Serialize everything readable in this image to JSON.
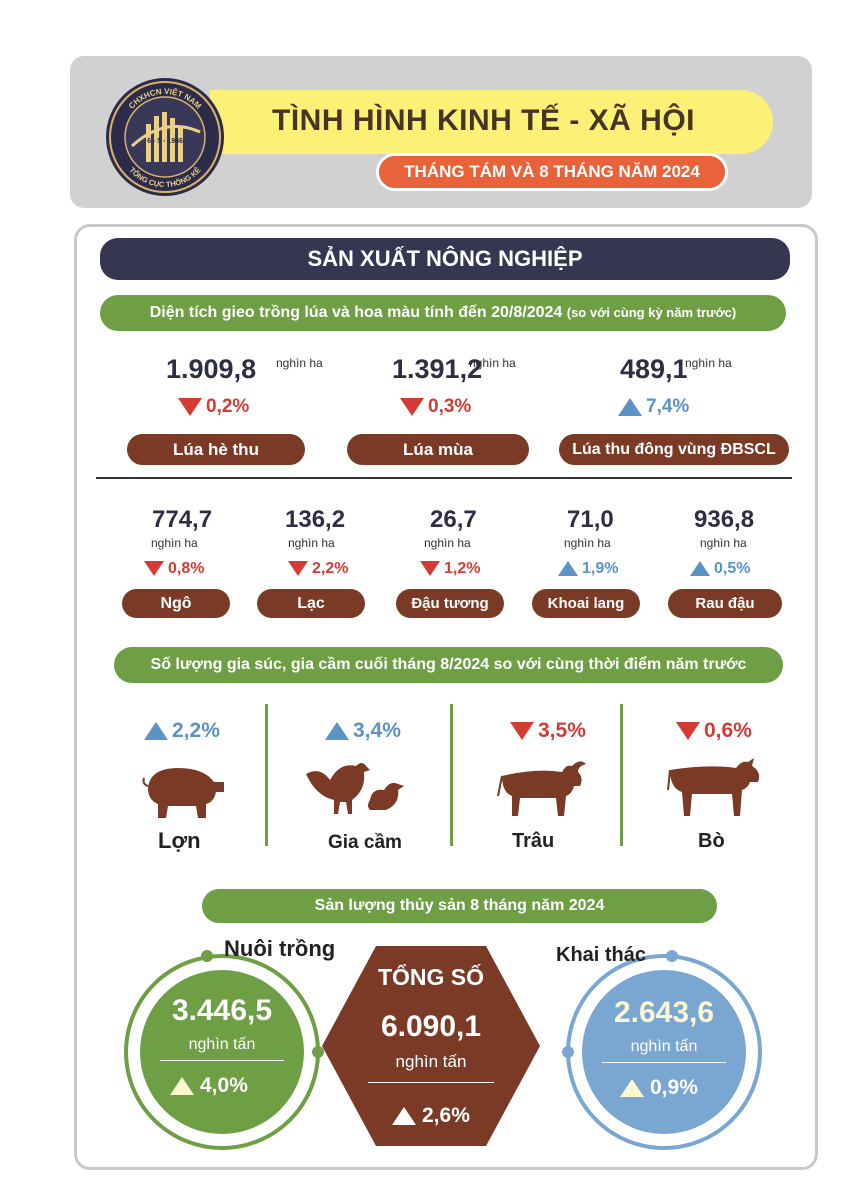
{
  "header": {
    "title": "TÌNH HÌNH KINH TẾ - XÃ HỘI",
    "subtitle": "THÁNG TÁM VÀ 8 THÁNG NĂM 2024",
    "logo": {
      "top_text": "CHXHCN VIỆT NAM",
      "date_text": "6 - 5 - 1946",
      "bottom_text": "TỔNG CỤC THỐNG KÊ"
    }
  },
  "section_title": "SẢN XUẤT NÔNG NGHIỆP",
  "sown_area": {
    "heading": "Diện tích gieo trồng lúa và hoa màu tính đến 20/8/2024",
    "heading_note": "(so với cùng kỳ năm trước)",
    "rice": [
      {
        "value": "1.909,8",
        "unit": "nghìn ha",
        "change": "0,2%",
        "direction": "down",
        "label": "Lúa hè thu"
      },
      {
        "value": "1.391,2",
        "unit": "nghìn ha",
        "change": "0,3%",
        "direction": "down",
        "label": "Lúa mùa"
      },
      {
        "value": "489,1",
        "unit": "nghìn ha",
        "change": "7,4%",
        "direction": "up",
        "label": "Lúa thu đông vùng ĐBSCL"
      }
    ],
    "crops": [
      {
        "value": "774,7",
        "unit": "nghìn ha",
        "change": "0,8%",
        "direction": "down",
        "label": "Ngô"
      },
      {
        "value": "136,2",
        "unit": "nghìn ha",
        "change": "2,2%",
        "direction": "down",
        "label": "Lạc"
      },
      {
        "value": "26,7",
        "unit": "nghìn ha",
        "change": "1,2%",
        "direction": "down",
        "label": "Đậu tương"
      },
      {
        "value": "71,0",
        "unit": "nghìn ha",
        "change": "1,9%",
        "direction": "up",
        "label": "Khoai lang"
      },
      {
        "value": "936,8",
        "unit": "nghìn ha",
        "change": "0,5%",
        "direction": "up",
        "label": "Rau đậu"
      }
    ]
  },
  "livestock": {
    "heading": "Số lượng gia súc, gia cầm cuối tháng 8/2024 so với cùng thời điểm năm trước",
    "items": [
      {
        "name": "Lợn",
        "change": "2,2%",
        "direction": "up",
        "icon": "pig-icon"
      },
      {
        "name": "Gia cầm",
        "change": "3,4%",
        "direction": "up",
        "icon": "poultry-icon"
      },
      {
        "name": "Trâu",
        "change": "3,5%",
        "direction": "down",
        "icon": "buffalo-icon"
      },
      {
        "name": "Bò",
        "change": "0,6%",
        "direction": "down",
        "icon": "cow-icon"
      }
    ]
  },
  "fishery": {
    "heading": "Sản lượng thủy sản 8 tháng năm 2024",
    "aquaculture": {
      "label": "Nuôi trồng",
      "value": "3.446,5",
      "unit": "nghìn tấn",
      "change": "4,0%"
    },
    "total": {
      "label": "TỔNG SỐ",
      "value": "6.090,1",
      "unit": "nghìn tấn",
      "change": "2,6%"
    },
    "capture": {
      "label": "Khai thác",
      "value": "2.643,6",
      "unit": "nghìn tấn",
      "change": "0,9%"
    }
  },
  "colors": {
    "dark_navy": "#363652",
    "green": "#6e9f45",
    "brown": "#7a3a26",
    "orange": "#e8623a",
    "yellow": "#fbf176",
    "red": "#d43b35",
    "blue": "#5b93c7",
    "light_blue": "#7aa6d2"
  }
}
